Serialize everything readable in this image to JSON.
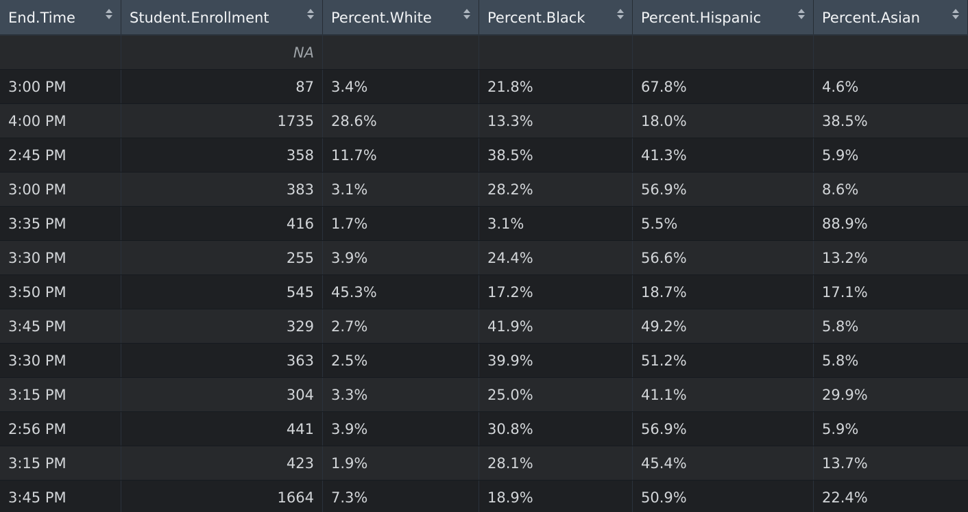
{
  "table": {
    "columns": [
      "End.Time",
      "Student.Enrollment",
      "Percent.White",
      "Percent.Black",
      "Percent.Hispanic",
      "Percent.Asian"
    ],
    "rows": [
      [
        "",
        "NA",
        "",
        "",
        "",
        ""
      ],
      [
        "3:00 PM",
        "87",
        "3.4%",
        "21.8%",
        "67.8%",
        "4.6%"
      ],
      [
        "4:00 PM",
        "1735",
        "28.6%",
        "13.3%",
        "18.0%",
        "38.5%"
      ],
      [
        "2:45 PM",
        "358",
        "11.7%",
        "38.5%",
        "41.3%",
        "5.9%"
      ],
      [
        "3:00 PM",
        "383",
        "3.1%",
        "28.2%",
        "56.9%",
        "8.6%"
      ],
      [
        "3:35 PM",
        "416",
        "1.7%",
        "3.1%",
        "5.5%",
        "88.9%"
      ],
      [
        "3:30 PM",
        "255",
        "3.9%",
        "24.4%",
        "56.6%",
        "13.2%"
      ],
      [
        "3:50 PM",
        "545",
        "45.3%",
        "17.2%",
        "18.7%",
        "17.1%"
      ],
      [
        "3:45 PM",
        "329",
        "2.7%",
        "41.9%",
        "49.2%",
        "5.8%"
      ],
      [
        "3:30 PM",
        "363",
        "2.5%",
        "39.9%",
        "51.2%",
        "5.8%"
      ],
      [
        "3:15 PM",
        "304",
        "3.3%",
        "25.0%",
        "41.1%",
        "29.9%"
      ],
      [
        "2:56 PM",
        "441",
        "3.9%",
        "30.8%",
        "56.9%",
        "5.9%"
      ],
      [
        "3:15 PM",
        "423",
        "1.9%",
        "28.1%",
        "45.4%",
        "13.7%"
      ],
      [
        "3:45 PM",
        "1664",
        "7.3%",
        "18.9%",
        "50.9%",
        "22.4%"
      ]
    ]
  },
  "icons": {
    "sort": "sort-up-down-icon"
  },
  "colors": {
    "header_bg": "#3e4a57",
    "row_odd": "#1e2023",
    "row_even": "#27292c",
    "text": "#d3d6d9"
  }
}
